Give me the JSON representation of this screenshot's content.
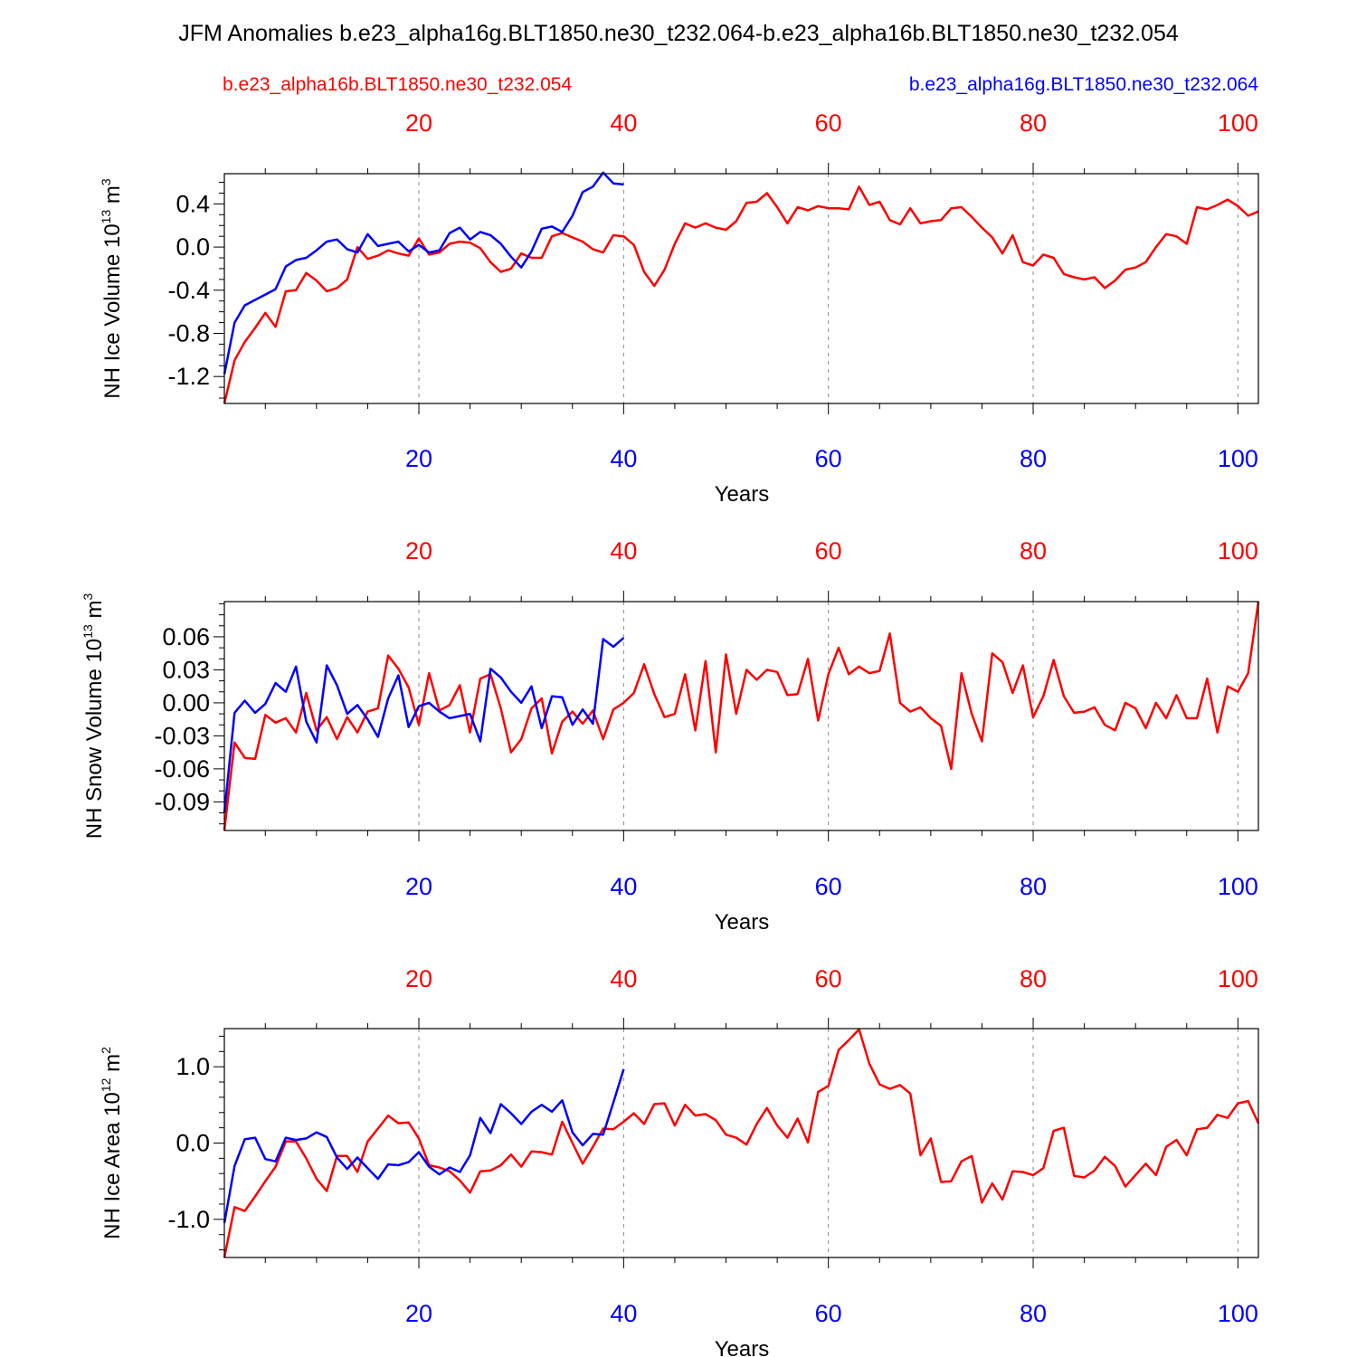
{
  "title": "JFM Anomalies b.e23_alpha16g.BLT1850.ne30_t232.064-b.e23_alpha16b.BLT1850.ne30_t232.054",
  "legend": {
    "red_label": "b.e23_alpha16b.BLT1850.ne30_t232.054",
    "blue_label": "b.e23_alpha16g.BLT1850.ne30_t232.064"
  },
  "colors": {
    "red": "#ff0000",
    "blue": "#0000ff",
    "axis": "#000000",
    "grid": "#888888"
  },
  "chart_data": [
    {
      "type": "line",
      "ylabel": "NH Ice Volume 10",
      "ylabel_exp": "13",
      "ylabel_unit": " m",
      "ylabel_unit_exp": "3",
      "xlabel": "Years",
      "xlim": [
        1,
        102
      ],
      "ylim": [
        -1.45,
        0.68
      ],
      "yticks": [
        -1.2,
        -0.8,
        -0.4,
        0.0,
        0.4
      ],
      "ytick_labels": [
        "-1.2",
        "-0.8",
        "-0.4",
        "0.0",
        "0.4"
      ],
      "yminor": 0.1,
      "xticks": [
        20,
        40,
        60,
        80,
        100
      ],
      "xtick_labels": [
        "20",
        "40",
        "60",
        "80",
        "100"
      ],
      "gridlines_x": [
        20,
        40,
        60,
        80,
        100
      ],
      "series": [
        {
          "name": "b.e23_alpha16b.BLT1850.ne30_t232.054",
          "color": "red",
          "start_year": 1,
          "values": [
            -1.45,
            -1.05,
            -0.88,
            -0.75,
            -0.61,
            -0.74,
            -0.41,
            -0.4,
            -0.24,
            -0.31,
            -0.41,
            -0.38,
            -0.3,
            0.0,
            -0.11,
            -0.08,
            -0.03,
            -0.06,
            -0.08,
            0.08,
            -0.07,
            -0.05,
            0.03,
            0.05,
            0.04,
            -0.01,
            -0.14,
            -0.23,
            -0.2,
            -0.06,
            -0.1,
            -0.1,
            0.1,
            0.13,
            0.09,
            0.05,
            -0.02,
            -0.05,
            0.11,
            0.1,
            0.02,
            -0.23,
            -0.36,
            -0.21,
            0.03,
            0.22,
            0.18,
            0.22,
            0.18,
            0.16,
            0.24,
            0.41,
            0.42,
            0.5,
            0.37,
            0.22,
            0.37,
            0.34,
            0.38,
            0.36,
            0.36,
            0.35,
            0.56,
            0.39,
            0.42,
            0.25,
            0.21,
            0.36,
            0.22,
            0.24,
            0.25,
            0.36,
            0.37,
            0.28,
            0.18,
            0.09,
            -0.06,
            0.11,
            -0.14,
            -0.17,
            -0.07,
            -0.1,
            -0.25,
            -0.28,
            -0.3,
            -0.28,
            -0.38,
            -0.31,
            -0.21,
            -0.19,
            -0.14,
            0.0,
            0.12,
            0.1,
            0.03,
            0.37,
            0.35,
            0.39,
            0.44,
            0.38,
            0.29,
            0.33
          ]
        },
        {
          "name": "b.e23_alpha16g.BLT1850.ne30_t232.064",
          "color": "blue",
          "start_year": 1,
          "values": [
            -1.18,
            -0.7,
            -0.54,
            -0.49,
            -0.44,
            -0.39,
            -0.18,
            -0.12,
            -0.1,
            -0.03,
            0.05,
            0.07,
            -0.02,
            -0.05,
            0.12,
            0.01,
            0.03,
            0.05,
            -0.04,
            0.02,
            -0.05,
            -0.03,
            0.13,
            0.18,
            0.07,
            0.14,
            0.11,
            0.03,
            -0.09,
            -0.19,
            -0.04,
            0.17,
            0.19,
            0.14,
            0.29,
            0.51,
            0.56,
            0.69,
            0.59,
            0.58
          ]
        }
      ]
    },
    {
      "type": "line",
      "ylabel": "NH Snow Volume 10",
      "ylabel_exp": "13",
      "ylabel_unit": " m",
      "ylabel_unit_exp": "3",
      "xlabel": "Years",
      "xlim": [
        1,
        102
      ],
      "ylim": [
        -0.116,
        0.092
      ],
      "yticks": [
        -0.09,
        -0.06,
        -0.03,
        0.0,
        0.03,
        0.06
      ],
      "ytick_labels": [
        "-0.09",
        "-0.06",
        "-0.03",
        "0.00",
        "0.03",
        "0.06"
      ],
      "yminor": 0.01,
      "xticks": [
        20,
        40,
        60,
        80,
        100
      ],
      "xtick_labels": [
        "20",
        "40",
        "60",
        "80",
        "100"
      ],
      "gridlines_x": [
        20,
        40,
        60,
        80,
        100
      ],
      "series": [
        {
          "name": "b.e23_alpha16b.BLT1850.ne30_t232.054",
          "color": "red",
          "start_year": 1,
          "values": [
            -0.116,
            -0.036,
            -0.05,
            -0.051,
            -0.011,
            -0.018,
            -0.014,
            -0.027,
            0.009,
            -0.025,
            -0.013,
            -0.033,
            -0.013,
            -0.027,
            -0.008,
            -0.005,
            0.043,
            0.031,
            0.014,
            -0.02,
            0.027,
            -0.007,
            -0.002,
            0.016,
            -0.027,
            0.022,
            0.026,
            -0.005,
            -0.045,
            -0.033,
            -0.005,
            0.004,
            -0.046,
            -0.017,
            -0.008,
            -0.019,
            -0.007,
            -0.033,
            -0.006,
            0.0,
            0.009,
            0.035,
            0.008,
            -0.013,
            -0.01,
            0.026,
            -0.025,
            0.038,
            -0.045,
            0.044,
            -0.01,
            0.03,
            0.021,
            0.03,
            0.028,
            0.007,
            0.008,
            0.04,
            -0.016,
            0.026,
            0.05,
            0.026,
            0.033,
            0.027,
            0.029,
            0.063,
            0.0,
            -0.008,
            -0.004,
            -0.014,
            -0.021,
            -0.06,
            0.027,
            -0.01,
            -0.035,
            0.045,
            0.037,
            0.009,
            0.034,
            -0.013,
            0.006,
            0.039,
            0.006,
            -0.009,
            -0.008,
            -0.004,
            -0.02,
            -0.025,
            0.0,
            -0.005,
            -0.023,
            0.0,
            -0.014,
            0.007,
            -0.014,
            -0.014,
            0.022,
            -0.027,
            0.015,
            0.01,
            0.027,
            0.092
          ]
        },
        {
          "name": "b.e23_alpha16g.BLT1850.ne30_t232.064",
          "color": "blue",
          "start_year": 1,
          "values": [
            -0.1,
            -0.009,
            0.002,
            -0.009,
            -0.001,
            0.018,
            0.01,
            0.033,
            -0.017,
            -0.036,
            0.034,
            0.016,
            -0.01,
            -0.002,
            -0.015,
            -0.031,
            0.004,
            0.025,
            -0.022,
            -0.003,
            0.0,
            -0.008,
            -0.014,
            -0.012,
            -0.01,
            -0.035,
            0.031,
            0.023,
            0.01,
            0.0,
            0.015,
            -0.023,
            0.006,
            0.005,
            -0.02,
            -0.006,
            -0.019,
            0.058,
            0.051,
            0.059
          ]
        }
      ]
    },
    {
      "type": "line",
      "ylabel": "NH Ice Area 10",
      "ylabel_exp": "12",
      "ylabel_unit": " m",
      "ylabel_unit_exp": "2",
      "xlabel": "Years",
      "xlim": [
        1,
        102
      ],
      "ylim": [
        -1.5,
        1.5
      ],
      "yticks": [
        -1.0,
        0.0,
        1.0
      ],
      "ytick_labels": [
        "-1.0",
        "0.0",
        "1.0"
      ],
      "yminor": 0.2,
      "xticks": [
        20,
        40,
        60,
        80,
        100
      ],
      "xtick_labels": [
        "20",
        "40",
        "60",
        "80",
        "100"
      ],
      "gridlines_x": [
        20,
        40,
        60,
        80,
        100
      ],
      "series": [
        {
          "name": "b.e23_alpha16b.BLT1850.ne30_t232.054",
          "color": "red",
          "start_year": 1,
          "values": [
            -1.5,
            -0.84,
            -0.89,
            -0.7,
            -0.5,
            -0.31,
            0.02,
            0.02,
            -0.2,
            -0.47,
            -0.63,
            -0.17,
            -0.17,
            -0.38,
            0.02,
            0.19,
            0.36,
            0.26,
            0.27,
            0.06,
            -0.29,
            -0.32,
            -0.37,
            -0.49,
            -0.65,
            -0.37,
            -0.36,
            -0.29,
            -0.15,
            -0.31,
            -0.11,
            -0.12,
            -0.15,
            0.28,
            0.0,
            -0.27,
            -0.05,
            0.19,
            0.18,
            0.28,
            0.39,
            0.25,
            0.51,
            0.52,
            0.23,
            0.5,
            0.36,
            0.38,
            0.3,
            0.11,
            0.07,
            -0.02,
            0.25,
            0.46,
            0.23,
            0.07,
            0.32,
            0.01,
            0.67,
            0.75,
            1.22,
            1.35,
            1.49,
            1.04,
            0.77,
            0.71,
            0.76,
            0.65,
            -0.16,
            0.06,
            -0.51,
            -0.5,
            -0.24,
            -0.17,
            -0.78,
            -0.53,
            -0.74,
            -0.37,
            -0.38,
            -0.42,
            -0.33,
            0.16,
            0.2,
            -0.43,
            -0.45,
            -0.36,
            -0.18,
            -0.3,
            -0.57,
            -0.42,
            -0.27,
            -0.42,
            -0.05,
            0.04,
            -0.16,
            0.18,
            0.2,
            0.37,
            0.33,
            0.52,
            0.55,
            0.26
          ]
        },
        {
          "name": "b.e23_alpha16g.BLT1850.ne30_t232.064",
          "color": "blue",
          "start_year": 1,
          "values": [
            -1.05,
            -0.3,
            0.05,
            0.07,
            -0.21,
            -0.24,
            0.07,
            0.04,
            0.06,
            0.14,
            0.08,
            -0.19,
            -0.34,
            -0.19,
            -0.33,
            -0.47,
            -0.28,
            -0.29,
            -0.25,
            -0.12,
            -0.31,
            -0.41,
            -0.32,
            -0.38,
            -0.16,
            0.33,
            0.13,
            0.51,
            0.39,
            0.25,
            0.41,
            0.5,
            0.41,
            0.56,
            0.14,
            -0.03,
            0.12,
            0.11,
            0.53,
            0.97
          ]
        }
      ]
    }
  ]
}
